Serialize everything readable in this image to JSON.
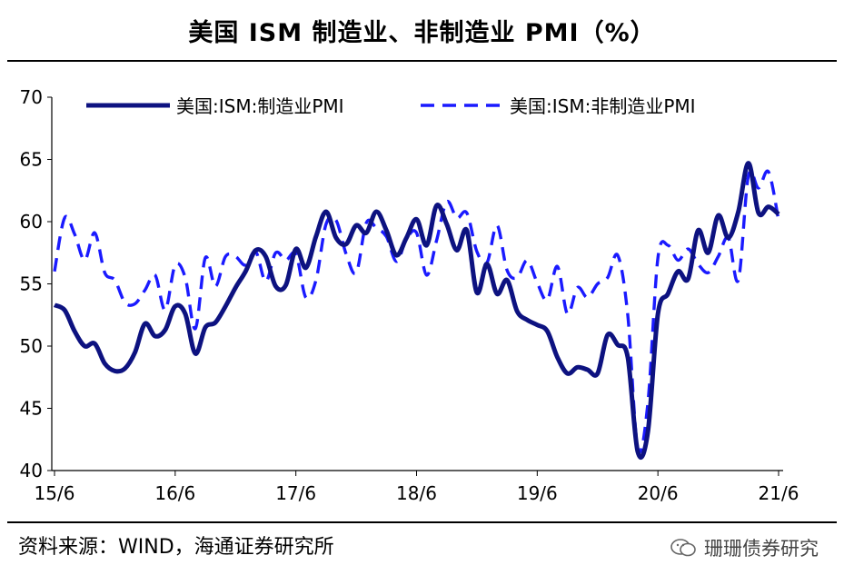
{
  "title": "美国 ISM 制造业、非制造业 PMI（%）",
  "source": "资料来源：WIND，海通证券研究所",
  "watermark": "珊珊债券研究",
  "chart_data": {
    "type": "line",
    "title": "美国 ISM 制造业、非制造业 PMI（%）",
    "xlabel": "",
    "ylabel": "",
    "ylim": [
      40,
      70
    ],
    "yticks": [
      40,
      45,
      50,
      55,
      60,
      65,
      70
    ],
    "x_tick_labels": [
      "15/6",
      "16/6",
      "17/6",
      "18/6",
      "19/6",
      "20/6",
      "21/6"
    ],
    "grid": false,
    "legend_position": "top",
    "x": [
      "15/6",
      "15/7",
      "15/8",
      "15/9",
      "15/10",
      "15/11",
      "15/12",
      "16/1",
      "16/2",
      "16/3",
      "16/4",
      "16/5",
      "16/6",
      "16/7",
      "16/8",
      "16/9",
      "16/10",
      "16/11",
      "16/12",
      "17/1",
      "17/2",
      "17/3",
      "17/4",
      "17/5",
      "17/6",
      "17/7",
      "17/8",
      "17/9",
      "17/10",
      "17/11",
      "17/12",
      "18/1",
      "18/2",
      "18/3",
      "18/4",
      "18/5",
      "18/6",
      "18/7",
      "18/8",
      "18/9",
      "18/10",
      "18/11",
      "18/12",
      "19/1",
      "19/2",
      "19/3",
      "19/4",
      "19/5",
      "19/6",
      "19/7",
      "19/8",
      "19/9",
      "19/10",
      "19/11",
      "19/12",
      "20/1",
      "20/2",
      "20/3",
      "20/4",
      "20/5",
      "20/6",
      "20/7",
      "20/8",
      "20/9",
      "20/10",
      "20/11",
      "20/12",
      "21/1",
      "21/2",
      "21/3",
      "21/4",
      "21/5",
      "21/6"
    ],
    "series": [
      {
        "name": "美国:ISM:制造业PMI",
        "style": "solid",
        "color": "#0d1280",
        "values": [
          53.3,
          52.9,
          51.2,
          50.0,
          50.2,
          48.6,
          48.0,
          48.2,
          49.5,
          51.8,
          50.8,
          51.3,
          53.2,
          52.6,
          49.4,
          51.5,
          51.9,
          53.2,
          54.7,
          56.0,
          57.7,
          57.2,
          54.8,
          54.9,
          57.8,
          56.3,
          58.8,
          60.8,
          58.7,
          58.2,
          59.7,
          59.1,
          60.8,
          59.3,
          57.3,
          58.7,
          60.2,
          58.1,
          61.3,
          59.8,
          57.7,
          59.3,
          54.3,
          56.6,
          54.2,
          55.3,
          52.8,
          52.1,
          51.7,
          51.2,
          49.1,
          47.8,
          48.3,
          48.1,
          47.8,
          50.9,
          50.1,
          49.1,
          41.5,
          43.1,
          52.6,
          54.2,
          56.0,
          55.4,
          59.3,
          57.5,
          60.5,
          58.7,
          60.8,
          64.7,
          60.7,
          61.2,
          60.6
        ]
      },
      {
        "name": "美国:ISM:非制造业PMI",
        "style": "dashed",
        "color": "#1a1aff",
        "values": [
          56.0,
          60.3,
          59.0,
          56.9,
          59.1,
          55.9,
          55.3,
          53.5,
          53.4,
          54.5,
          55.7,
          52.9,
          56.5,
          55.5,
          51.4,
          57.1,
          54.8,
          57.2,
          57.2,
          56.5,
          57.6,
          55.2,
          57.5,
          56.9,
          57.4,
          53.9,
          55.3,
          59.8,
          60.1,
          57.4,
          55.9,
          59.9,
          59.5,
          58.8,
          56.8,
          58.6,
          59.1,
          55.7,
          58.5,
          61.6,
          60.3,
          60.7,
          57.6,
          56.7,
          59.7,
          56.1,
          55.5,
          56.9,
          55.1,
          53.7,
          56.4,
          52.6,
          54.7,
          53.9,
          55.0,
          55.5,
          57.3,
          52.5,
          41.8,
          45.4,
          57.1,
          58.1,
          56.9,
          57.8,
          56.6,
          55.9,
          57.2,
          58.7,
          55.3,
          63.7,
          62.7,
          64.0,
          60.1
        ]
      }
    ]
  }
}
